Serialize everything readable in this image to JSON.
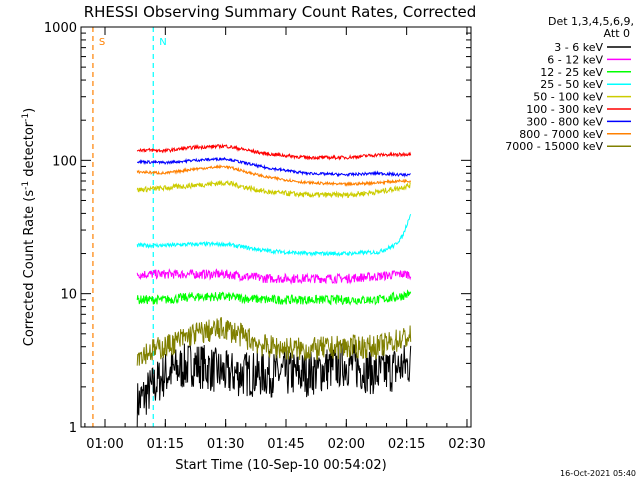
{
  "chart_data": {
    "type": "line",
    "title": "RHESSI Observing Summary Count Rates, Corrected",
    "xlabel": "Start Time (10-Sep-10 00:54:02)",
    "ylabel": "Corrected Count Rate (s",
    "ylabel_sup": "-1",
    "ylabel_tail": " detector",
    "ylabel_close": ")",
    "y_scale": "log",
    "ylim": [
      1,
      1000
    ],
    "xlim": [
      "00:54:02",
      "02:31:00"
    ],
    "x_ticks": [
      "01:00",
      "01:15",
      "01:30",
      "01:45",
      "02:00",
      "02:15",
      "02:30"
    ],
    "y_ticks": [
      "1",
      "10",
      "100",
      "1000"
    ],
    "timestamp": "16-Oct-2021 05:40",
    "legend": {
      "placement": "right",
      "header": [
        "Det 1,3,4,5,6,9,",
        "Att 0"
      ],
      "entries": [
        {
          "label": "3 - 6 keV",
          "color": "#000000"
        },
        {
          "label": "6 - 12 keV",
          "color": "#ff00ff"
        },
        {
          "label": "12 - 25 keV",
          "color": "#00ff00"
        },
        {
          "label": "25 - 50 keV",
          "color": "#00ffff"
        },
        {
          "label": "50 - 100 keV",
          "color": "#cccc00"
        },
        {
          "label": "100 - 300 keV",
          "color": "#ff0000"
        },
        {
          "label": "300 - 800 keV",
          "color": "#0000ff"
        },
        {
          "label": "800 - 7000 keV",
          "color": "#ff8000"
        },
        {
          "label": "7000 - 15000 keV",
          "color": "#808000"
        }
      ]
    },
    "annotations": [
      {
        "label": "S",
        "time": "00:57:00",
        "color": "#ff8000"
      },
      {
        "label": "N",
        "time": "01:12:00",
        "color": "#00ffff"
      }
    ],
    "series": [
      {
        "name": "3 - 6 keV",
        "color": "#000000",
        "x": [
          "01:08:00",
          "01:15:00",
          "01:22:00",
          "01:30:00",
          "01:40:00",
          "01:50:00",
          "02:00:00",
          "02:08:00",
          "02:13:00",
          "02:16:00"
        ],
        "y": [
          1.5,
          2.5,
          3,
          2.5,
          2.5,
          2.5,
          3,
          2.5,
          2.8,
          3
        ]
      },
      {
        "name": "6 - 12 keV",
        "color": "#ff00ff",
        "x": [
          "01:08:00",
          "01:15:00",
          "01:22:00",
          "01:30:00",
          "01:40:00",
          "01:50:00",
          "02:00:00",
          "02:08:00",
          "02:13:00",
          "02:16:00"
        ],
        "y": [
          14,
          14,
          14,
          14,
          13,
          13,
          13,
          13.5,
          14,
          14
        ]
      },
      {
        "name": "12 - 25 keV",
        "color": "#00ff00",
        "x": [
          "01:08:00",
          "01:15:00",
          "01:22:00",
          "01:30:00",
          "01:40:00",
          "01:50:00",
          "02:00:00",
          "02:08:00",
          "02:13:00",
          "02:16:00"
        ],
        "y": [
          9,
          9,
          9.5,
          9.5,
          9,
          9,
          9,
          9,
          9.5,
          10
        ]
      },
      {
        "name": "25 - 50 keV",
        "color": "#00ffff",
        "x": [
          "01:08:00",
          "01:15:00",
          "01:22:00",
          "01:30:00",
          "01:40:00",
          "01:50:00",
          "02:00:00",
          "02:08:00",
          "02:12:00",
          "02:14:00",
          "02:16:00"
        ],
        "y": [
          23,
          23,
          23.5,
          23.5,
          21,
          20,
          20,
          20.5,
          23,
          27,
          40
        ]
      },
      {
        "name": "50 - 100 keV",
        "color": "#cccc00",
        "x": [
          "01:08:00",
          "01:15:00",
          "01:22:00",
          "01:30:00",
          "01:40:00",
          "01:50:00",
          "02:00:00",
          "02:08:00",
          "02:13:00",
          "02:16:00"
        ],
        "y": [
          60,
          62,
          65,
          68,
          58,
          55,
          55,
          58,
          62,
          65
        ]
      },
      {
        "name": "100 - 300 keV",
        "color": "#ff0000",
        "x": [
          "01:08:00",
          "01:15:00",
          "01:22:00",
          "01:30:00",
          "01:40:00",
          "01:50:00",
          "02:00:00",
          "02:08:00",
          "02:13:00",
          "02:16:00"
        ],
        "y": [
          120,
          118,
          125,
          128,
          112,
          105,
          105,
          110,
          110,
          112
        ]
      },
      {
        "name": "300 - 800 keV",
        "color": "#0000ff",
        "x": [
          "01:08:00",
          "01:15:00",
          "01:22:00",
          "01:30:00",
          "01:40:00",
          "01:50:00",
          "02:00:00",
          "02:08:00",
          "02:13:00",
          "02:16:00"
        ],
        "y": [
          98,
          96,
          100,
          103,
          88,
          80,
          78,
          80,
          78,
          78
        ]
      },
      {
        "name": "800 - 7000 keV",
        "color": "#ff8000",
        "x": [
          "01:08:00",
          "01:15:00",
          "01:22:00",
          "01:30:00",
          "01:40:00",
          "01:50:00",
          "02:00:00",
          "02:08:00",
          "02:13:00",
          "02:16:00"
        ],
        "y": [
          82,
          80,
          86,
          90,
          75,
          68,
          66,
          68,
          70,
          70
        ]
      },
      {
        "name": "7000 - 15000 keV",
        "color": "#808000",
        "x": [
          "01:08:00",
          "01:15:00",
          "01:22:00",
          "01:30:00",
          "01:40:00",
          "01:50:00",
          "02:00:00",
          "02:08:00",
          "02:13:00",
          "02:16:00"
        ],
        "y": [
          3.5,
          4,
          5,
          5.5,
          4,
          3.8,
          4,
          4,
          4.5,
          4.8
        ]
      }
    ]
  }
}
